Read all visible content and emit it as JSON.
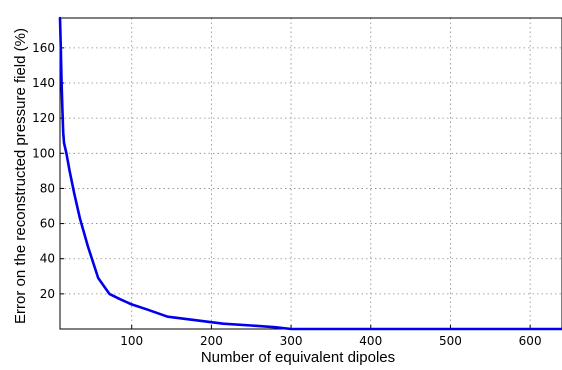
{
  "chart_data": {
    "type": "line",
    "title": "",
    "xlabel": "Number of equivalent dipoles",
    "ylabel": "Error on the reconstructed pressure field (%)",
    "xlim": [
      10,
      640
    ],
    "ylim": [
      0,
      177
    ],
    "xticks": [
      100,
      200,
      300,
      400,
      500,
      600
    ],
    "yticks": [
      20,
      40,
      60,
      80,
      100,
      120,
      140,
      160
    ],
    "grid": true,
    "grid_style": "dotted",
    "series": [
      {
        "color": "#0000ee",
        "x": [
          10,
          11,
          12,
          13,
          14,
          15,
          18,
          22,
          28,
          35,
          45,
          58,
          72,
          85,
          100,
          120,
          145,
          180,
          215,
          250,
          280,
          300,
          400,
          500,
          640
        ],
        "y": [
          177,
          160,
          140,
          125,
          112,
          106,
          100,
          90,
          77,
          63,
          47,
          29,
          20,
          17,
          14,
          11,
          7,
          5,
          3,
          2,
          1,
          0,
          0,
          0,
          0
        ]
      }
    ]
  }
}
